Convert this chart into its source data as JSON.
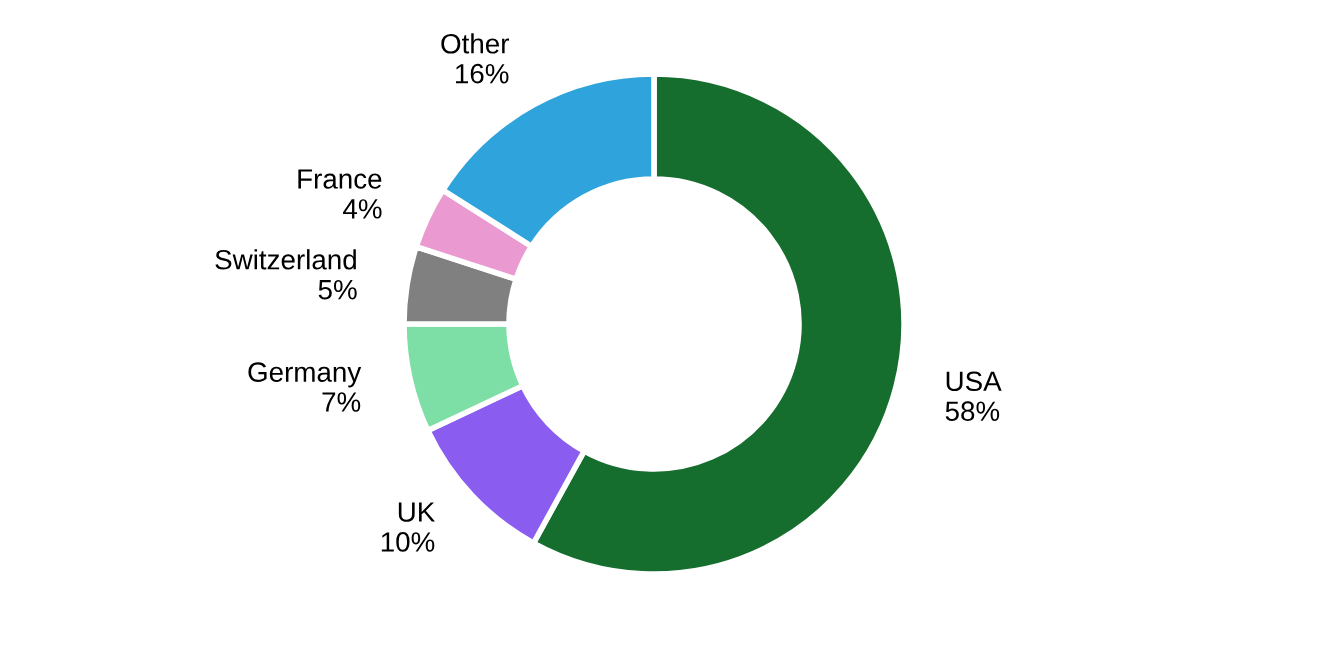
{
  "chart_data": {
    "type": "donut",
    "categories": [
      "USA",
      "UK",
      "Germany",
      "Switzerland",
      "France",
      "Other"
    ],
    "values": [
      58,
      10,
      7,
      5,
      4,
      16
    ],
    "colors": [
      "#166e2e",
      "#8a5cf0",
      "#7ddfa6",
      "#808080",
      "#ea9ad0",
      "#2fa3dc"
    ],
    "value_labels": [
      "58%",
      "10%",
      "7%",
      "5%",
      "4%",
      "16%"
    ]
  }
}
